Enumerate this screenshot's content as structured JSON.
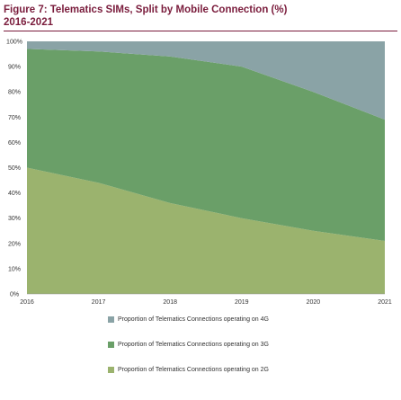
{
  "figure": {
    "title_line1": "Figure 7: Telematics SIMs, Split by Mobile Connection (%)",
    "title_line2": "2016-2021"
  },
  "chart_data": {
    "type": "area",
    "stacked": true,
    "categories": [
      "2016",
      "2017",
      "2018",
      "2019",
      "2020",
      "2021"
    ],
    "ylim": [
      0,
      100
    ],
    "y_ticks": [
      "0%",
      "10%",
      "20%",
      "30%",
      "40%",
      "50%",
      "60%",
      "70%",
      "80%",
      "90%",
      "100%"
    ],
    "grid": false,
    "legend_position": "bottom",
    "series": [
      {
        "name": "Proportion of Telematics Connections operating on 2G",
        "color": "#9bb36e",
        "values": [
          50,
          44,
          36,
          30,
          25,
          21
        ]
      },
      {
        "name": "Proportion of Telematics Connections operating on 3G",
        "color": "#6a9f68",
        "values": [
          47,
          52,
          58,
          60,
          55,
          48
        ]
      },
      {
        "name": "Proportion of Telematics Connections operating on 4G",
        "color": "#8aa3a6",
        "values": [
          3,
          4,
          6,
          10,
          20,
          31
        ]
      }
    ],
    "legend_order": [
      2,
      1,
      0
    ]
  }
}
